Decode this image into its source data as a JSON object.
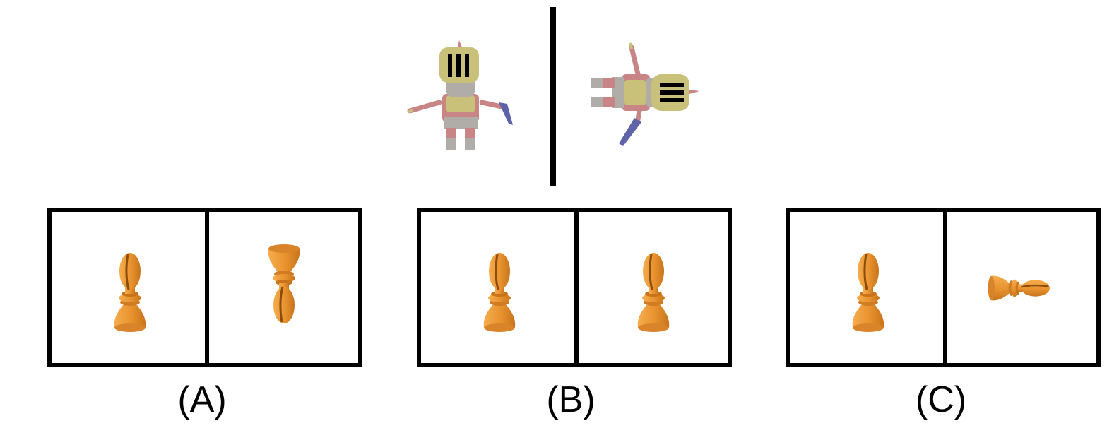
{
  "reference": {
    "view_left_icon": "knight-figure-icon",
    "view_right_icon": "knight-figure-rotated-icon"
  },
  "options": [
    {
      "label": "(A)",
      "left_icon": "pawn-upright-icon",
      "right_icon": "pawn-flipped-icon"
    },
    {
      "label": "(B)",
      "left_icon": "pawn-upright-icon",
      "right_icon": "pawn-upright-icon"
    },
    {
      "label": "(C)",
      "left_icon": "pawn-upright-icon",
      "right_icon": "pawn-lying-icon"
    }
  ],
  "colors": {
    "pawn": "#e8922e",
    "pawn_dark": "#b86a17",
    "helmet": "#c9c07a",
    "body_red": "#c98585",
    "armor_grey": "#b0aca8",
    "blade_blue": "#5f63a8"
  }
}
